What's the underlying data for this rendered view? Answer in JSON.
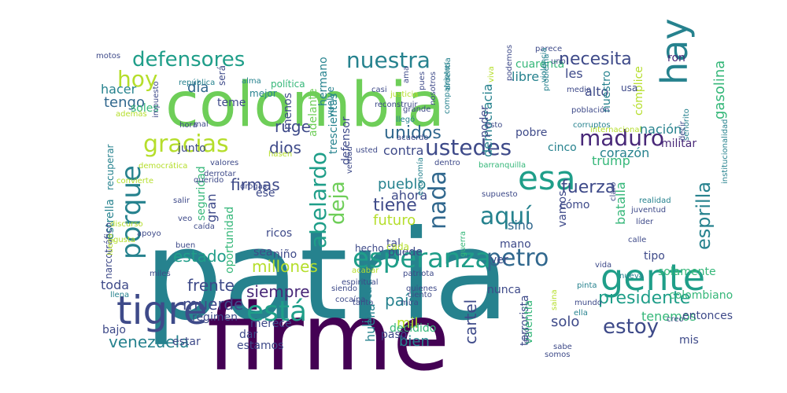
{
  "palette": {
    "deep_purple": "#440154",
    "purple": "#482878",
    "indigo": "#3e4a89",
    "blue": "#31688e",
    "teal": "#26828e",
    "green_teal": "#1f9e89",
    "green": "#35b779",
    "light_green": "#6ece58",
    "lime": "#b5de2b",
    "yellow": "#fde725"
  },
  "words": [
    {
      "text": "patria",
      "color": "teal"
    },
    {
      "text": "firme",
      "color": "deep_purple"
    },
    {
      "text": "colombia",
      "color": "light_green"
    },
    {
      "text": "tigre",
      "color": "indigo"
    },
    {
      "text": "gente",
      "color": "green_teal"
    },
    {
      "text": "esa",
      "color": "green_teal"
    },
    {
      "text": "hay",
      "color": "teal"
    },
    {
      "text": "porque",
      "color": "teal"
    },
    {
      "text": "esperanza",
      "color": "green_teal"
    },
    {
      "text": "petro",
      "color": "blue"
    },
    {
      "text": "nuestra",
      "color": "teal"
    },
    {
      "text": "defensores",
      "color": "green_teal"
    },
    {
      "text": "ustedes",
      "color": "indigo"
    },
    {
      "text": "gracias",
      "color": "lime"
    },
    {
      "text": "maduro",
      "color": "purple"
    },
    {
      "text": "aquí",
      "color": "teal"
    },
    {
      "text": "nada",
      "color": "blue"
    },
    {
      "text": "está",
      "color": "green_teal"
    },
    {
      "text": "hoy",
      "color": "lime"
    },
    {
      "text": "abelardo",
      "color": "green_teal"
    },
    {
      "text": "fuerza",
      "color": "indigo"
    },
    {
      "text": "estoy",
      "color": "indigo"
    },
    {
      "text": "presidente",
      "color": "green_teal"
    },
    {
      "text": "necesita",
      "color": "indigo"
    },
    {
      "text": "unidos",
      "color": "blue"
    },
    {
      "text": "tiene",
      "color": "indigo"
    },
    {
      "text": "deja",
      "color": "light_green"
    },
    {
      "text": "ruge",
      "color": "indigo"
    },
    {
      "text": "dios",
      "color": "indigo"
    },
    {
      "text": "venezuela",
      "color": "teal"
    },
    {
      "text": "esprilla",
      "color": "teal"
    },
    {
      "text": "estado",
      "color": "green_teal"
    },
    {
      "text": "millones",
      "color": "lime"
    },
    {
      "text": "siempre",
      "color": "purple"
    },
    {
      "text": "firmas",
      "color": "indigo"
    },
    {
      "text": "frente",
      "color": "indigo"
    },
    {
      "text": "muerde",
      "color": "indigo"
    },
    {
      "text": "toda",
      "color": "indigo"
    },
    {
      "text": "tengo",
      "color": "blue"
    },
    {
      "text": "hacer",
      "color": "teal"
    },
    {
      "text": "día",
      "color": "blue"
    },
    {
      "text": "libre",
      "color": "teal"
    },
    {
      "text": "cuarenta",
      "color": "green"
    },
    {
      "text": "democracia",
      "color": "teal"
    },
    {
      "text": "ron",
      "color": "purple"
    },
    {
      "text": "gasolina",
      "color": "green"
    },
    {
      "text": "alto",
      "color": "indigo"
    },
    {
      "text": "les",
      "color": "indigo"
    },
    {
      "text": "trump",
      "color": "green"
    },
    {
      "text": "corazón",
      "color": "teal"
    },
    {
      "text": "batalla",
      "color": "green"
    },
    {
      "text": "nación",
      "color": "teal"
    },
    {
      "text": "militar",
      "color": "purple"
    },
    {
      "text": "pueblo",
      "color": "teal"
    },
    {
      "text": "futuro",
      "color": "lime"
    },
    {
      "text": "ahora",
      "color": "indigo"
    },
    {
      "text": "sino",
      "color": "blue"
    },
    {
      "text": "cómo",
      "color": "indigo"
    },
    {
      "text": "ver",
      "color": "indigo"
    },
    {
      "text": "tipo",
      "color": "indigo"
    },
    {
      "text": "vamos",
      "color": "indigo"
    },
    {
      "text": "contra",
      "color": "indigo"
    },
    {
      "text": "pobre",
      "color": "indigo"
    },
    {
      "text": "cinco",
      "color": "teal"
    },
    {
      "text": "mil",
      "color": "lime"
    },
    {
      "text": "país",
      "color": "teal"
    },
    {
      "text": "solo",
      "color": "indigo"
    },
    {
      "text": "bien",
      "color": "teal"
    },
    {
      "text": "tenemos",
      "color": "green"
    },
    {
      "text": "colombiano",
      "color": "green"
    },
    {
      "text": "entonces",
      "color": "indigo"
    },
    {
      "text": "mis",
      "color": "indigo"
    },
    {
      "text": "bajo",
      "color": "indigo"
    },
    {
      "text": "régimen",
      "color": "indigo"
    },
    {
      "text": "estar",
      "color": "indigo"
    },
    {
      "text": "dar",
      "color": "indigo"
    },
    {
      "text": "estamos",
      "color": "indigo"
    },
    {
      "text": "cartel",
      "color": "indigo"
    },
    {
      "text": "huella",
      "color": "teal"
    },
    {
      "text": "libertad",
      "color": "teal"
    },
    {
      "text": "decidido",
      "color": "green"
    },
    {
      "text": "paso",
      "color": "indigo"
    },
    {
      "text": "merece",
      "color": "indigo"
    },
    {
      "text": "niño",
      "color": "indigo"
    },
    {
      "text": "ricos",
      "color": "indigo"
    },
    {
      "text": "gran",
      "color": "indigo"
    },
    {
      "text": "ese",
      "color": "indigo"
    },
    {
      "text": "sea",
      "color": "indigo"
    },
    {
      "text": "puede",
      "color": "indigo"
    },
    {
      "text": "tal",
      "color": "indigo"
    },
    {
      "text": "mano",
      "color": "indigo"
    },
    {
      "text": "nunca",
      "color": "indigo"
    },
    {
      "text": "terrorista",
      "color": "indigo"
    },
    {
      "text": "valentía",
      "color": "green"
    },
    {
      "text": "solamente",
      "color": "green"
    },
    {
      "text": "soles",
      "color": "green"
    },
    {
      "text": "junto",
      "color": "indigo"
    },
    {
      "text": "recuperar",
      "color": "teal"
    },
    {
      "text": "estrella",
      "color": "teal"
    },
    {
      "text": "narcotráfico",
      "color": "indigo"
    },
    {
      "text": "oportunidad",
      "color": "green"
    },
    {
      "text": "seguridad",
      "color": "green"
    },
    {
      "text": "teme",
      "color": "indigo"
    },
    {
      "text": "será",
      "color": "indigo"
    },
    {
      "text": "menos",
      "color": "indigo"
    },
    {
      "text": "adelante",
      "color": "light_green"
    },
    {
      "text": "hermano",
      "color": "teal"
    },
    {
      "text": "vuelve",
      "color": "teal"
    },
    {
      "text": "defensor",
      "color": "indigo"
    },
    {
      "text": "trescientas",
      "color": "teal"
    },
    {
      "text": "poder",
      "color": "indigo"
    },
    {
      "text": "nuestro",
      "color": "teal"
    },
    {
      "text": "cómplice",
      "color": "lime"
    },
    {
      "text": "mejor",
      "color": "teal"
    },
    {
      "text": "política",
      "color": "green"
    },
    {
      "text": "usa",
      "color": "indigo"
    },
    {
      "text": "cada",
      "color": "lime"
    },
    {
      "text": "hecho",
      "color": "indigo"
    },
    {
      "text": "motos",
      "color": "indigo"
    },
    {
      "text": "impuesto",
      "color": "indigo"
    },
    {
      "text": "además",
      "color": "lime"
    },
    {
      "text": "república",
      "color": "teal"
    },
    {
      "text": "alma",
      "color": "teal"
    },
    {
      "text": "mal",
      "color": "indigo"
    },
    {
      "text": "hora",
      "color": "indigo"
    },
    {
      "text": "valores",
      "color": "indigo"
    },
    {
      "text": "derrotar",
      "color": "indigo"
    },
    {
      "text": "drogas",
      "color": "indigo"
    },
    {
      "text": "salir",
      "color": "indigo"
    },
    {
      "text": "veo",
      "color": "indigo"
    },
    {
      "text": "caída",
      "color": "indigo"
    },
    {
      "text": "buen",
      "color": "indigo"
    },
    {
      "text": "miles",
      "color": "indigo"
    },
    {
      "text": "apoyo",
      "color": "indigo"
    },
    {
      "text": "querido",
      "color": "indigo"
    },
    {
      "text": "convierte",
      "color": "lime"
    },
    {
      "text": "usted",
      "color": "indigo"
    },
    {
      "text": "esto",
      "color": "indigo"
    },
    {
      "text": "llegó",
      "color": "teal"
    },
    {
      "text": "grande",
      "color": "indigo"
    },
    {
      "text": "acuerdo",
      "color": "indigo"
    },
    {
      "text": "dentro",
      "color": "indigo"
    },
    {
      "text": "verdad",
      "color": "indigo"
    },
    {
      "text": "supuesto",
      "color": "indigo"
    },
    {
      "text": "economía",
      "color": "teal"
    },
    {
      "text": "barranquilla",
      "color": "green"
    },
    {
      "text": "corruptos",
      "color": "teal"
    },
    {
      "text": "población",
      "color": "indigo"
    },
    {
      "text": "internacional",
      "color": "lime"
    },
    {
      "text": "realidad",
      "color": "teal"
    },
    {
      "text": "juventud",
      "color": "indigo"
    },
    {
      "text": "líder",
      "color": "indigo"
    },
    {
      "text": "calle",
      "color": "indigo"
    },
    {
      "text": "claro",
      "color": "indigo"
    },
    {
      "text": "vida",
      "color": "indigo"
    },
    {
      "text": "ella",
      "color": "teal"
    },
    {
      "text": "mundo",
      "color": "indigo"
    },
    {
      "text": "sabe",
      "color": "indigo"
    },
    {
      "text": "nueva",
      "color": "teal"
    },
    {
      "text": "creo",
      "color": "indigo"
    },
    {
      "text": "pinta",
      "color": "teal"
    },
    {
      "text": "guerra",
      "color": "green"
    },
    {
      "text": "patriota",
      "color": "indigo"
    },
    {
      "text": "ciento",
      "color": "indigo"
    },
    {
      "text": "espiritual",
      "color": "indigo"
    },
    {
      "text": "cocaína",
      "color": "indigo"
    },
    {
      "text": "tanto",
      "color": "indigo"
    },
    {
      "text": "quienes",
      "color": "indigo"
    },
    {
      "text": "acabar",
      "color": "lime"
    },
    {
      "text": "mira",
      "color": "indigo"
    },
    {
      "text": "parece",
      "color": "indigo"
    },
    {
      "text": "uno",
      "color": "indigo"
    },
    {
      "text": "nosotros",
      "color": "indigo"
    },
    {
      "text": "compatriotas",
      "color": "teal"
    },
    {
      "text": "ardentía",
      "color": "teal"
    },
    {
      "text": "justicia",
      "color": "lime"
    },
    {
      "text": "casi",
      "color": "indigo"
    },
    {
      "text": "pues",
      "color": "indigo"
    },
    {
      "text": "ama",
      "color": "indigo"
    },
    {
      "text": "viva",
      "color": "lime"
    },
    {
      "text": "podemos",
      "color": "indigo"
    },
    {
      "text": "violencia",
      "color": "teal"
    },
    {
      "text": "problema",
      "color": "teal"
    },
    {
      "text": "reconstruir",
      "color": "indigo"
    },
    {
      "text": "medio",
      "color": "indigo"
    },
    {
      "text": "señorito",
      "color": "teal"
    },
    {
      "text": "decir",
      "color": "indigo"
    },
    {
      "text": "somos",
      "color": "indigo"
    },
    {
      "text": "sido",
      "color": "indigo"
    },
    {
      "text": "institucionalidad",
      "color": "teal"
    },
    {
      "text": "democrática",
      "color": "lime"
    },
    {
      "text": "hasen",
      "color": "lime"
    },
    {
      "text": "gusta",
      "color": "lime"
    },
    {
      "text": "llena",
      "color": "teal"
    },
    {
      "text": "siendo",
      "color": "indigo"
    },
    {
      "text": "saina",
      "color": "lime"
    },
    {
      "text": "discurso",
      "color": "lime"
    },
    {
      "text": "luego",
      "color": "lime"
    }
  ]
}
